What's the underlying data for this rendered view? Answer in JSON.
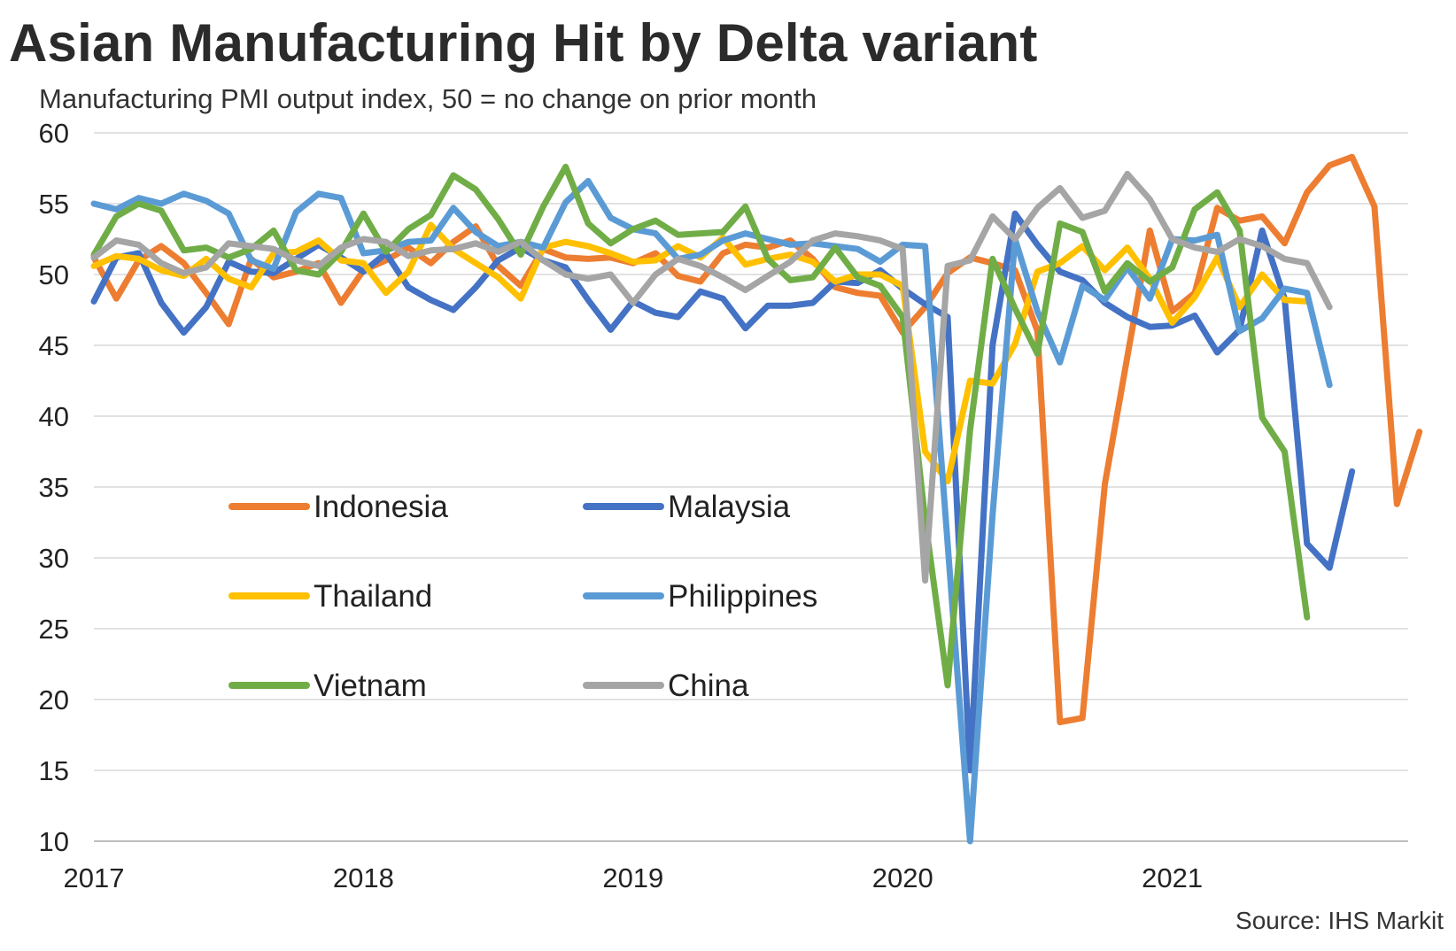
{
  "title": "Asian Manufacturing Hit by Delta variant",
  "subtitle": "Manufacturing PMI output index, 50 = no change on prior month",
  "source": "Source: IHS Markit",
  "chart_data": {
    "type": "line",
    "ylim": [
      10,
      60
    ],
    "yticks": [
      10,
      15,
      20,
      25,
      30,
      35,
      40,
      45,
      50,
      55,
      60
    ],
    "xticks": [
      "2017",
      "2018",
      "2019",
      "2020",
      "2021"
    ],
    "x_start": "2017-01",
    "grid": true,
    "legend_position": "lower-left inside plot",
    "series": [
      {
        "name": "Indonesia",
        "color": "#ED7D31",
        "values": [
          51.2,
          48.3,
          51.0,
          52.0,
          50.8,
          48.7,
          46.5,
          51.1,
          49.8,
          50.2,
          50.8,
          48.0,
          50.3,
          51.0,
          51.9,
          50.8,
          52.3,
          53.4,
          50.6,
          49.2,
          51.8,
          51.2,
          51.1,
          51.2,
          50.8,
          51.5,
          49.9,
          49.5,
          51.5,
          52.1,
          51.9,
          52.4,
          51.1,
          49.1,
          48.7,
          48.5,
          45.9,
          47.7,
          50.1,
          51.2,
          50.8,
          50.3,
          46.0,
          18.4,
          18.7,
          35.2,
          44.2,
          53.1,
          47.4,
          48.7,
          54.7,
          53.8,
          54.1,
          52.2,
          55.8,
          57.7,
          58.3,
          54.8,
          33.8,
          38.9
        ]
      },
      {
        "name": "Malaysia",
        "color": "#4472C4",
        "values": [
          48.1,
          51.2,
          51.5,
          48.0,
          45.9,
          47.7,
          50.9,
          50.2,
          50.1,
          51.1,
          52.1,
          51.2,
          50.2,
          51.5,
          49.1,
          48.2,
          47.5,
          49.1,
          51.0,
          51.9,
          51.0,
          50.5,
          48.2,
          46.1,
          48.1,
          47.3,
          47.0,
          48.8,
          48.3,
          46.2,
          47.8,
          47.8,
          48.0,
          49.5,
          49.4,
          50.3,
          49.0,
          47.9,
          47.0,
          15.0,
          45.0,
          54.3,
          52.1,
          50.2,
          49.6,
          48.0,
          47.0,
          46.3,
          46.4,
          47.1,
          44.5,
          46.1,
          53.1,
          48.3,
          31.0,
          29.3,
          36.1
        ]
      },
      {
        "name": "Thailand",
        "color": "#FFC000",
        "values": [
          50.6,
          51.3,
          51.1,
          50.3,
          49.9,
          51.1,
          49.7,
          49.1,
          51.5,
          51.6,
          52.4,
          51.0,
          50.8,
          48.7,
          50.2,
          53.5,
          51.8,
          50.8,
          49.8,
          48.3,
          51.9,
          52.3,
          52.0,
          51.5,
          50.9,
          51.0,
          52.0,
          51.2,
          52.6,
          50.7,
          51.1,
          51.4,
          50.9,
          49.5,
          50.0,
          50.0,
          49.2,
          37.5,
          35.4,
          42.5,
          42.3,
          45.1,
          50.2,
          50.8,
          52.0,
          50.3,
          51.9,
          49.7,
          46.6,
          48.4,
          51.2,
          47.7,
          50.0,
          48.2,
          48.1
        ]
      },
      {
        "name": "Philippines",
        "color": "#5B9BD5",
        "values": [
          55.0,
          54.6,
          55.4,
          55.0,
          55.7,
          55.2,
          54.3,
          51.0,
          50.4,
          54.4,
          55.7,
          55.4,
          51.5,
          51.7,
          52.3,
          52.4,
          54.7,
          53.0,
          52.0,
          52.3,
          51.9,
          55.1,
          56.6,
          54.0,
          53.2,
          52.9,
          51.1,
          51.4,
          52.4,
          52.9,
          52.5,
          52.1,
          52.2,
          52.0,
          51.8,
          50.9,
          52.1,
          52.0,
          31.0,
          10.0,
          33.0,
          52.5,
          47.4,
          43.8,
          49.2,
          48.2,
          50.5,
          48.3,
          52.5,
          52.4,
          52.8,
          46.0,
          46.9,
          49.0,
          48.7,
          42.2
        ]
      },
      {
        "name": "Vietnam",
        "color": "#70AD47",
        "values": [
          51.4,
          54.1,
          55.0,
          54.5,
          51.7,
          51.9,
          51.2,
          51.8,
          53.1,
          50.3,
          50.0,
          51.6,
          54.3,
          51.6,
          53.2,
          54.2,
          57.0,
          56.0,
          53.9,
          51.4,
          54.8,
          57.6,
          53.6,
          52.2,
          53.2,
          53.8,
          52.8,
          52.9,
          53.0,
          54.8,
          51.1,
          49.6,
          49.8,
          51.9,
          49.8,
          49.2,
          47.0,
          32.7,
          21.0,
          39.0,
          51.1,
          47.6,
          44.4,
          53.6,
          53.0,
          48.8,
          50.8,
          49.5,
          50.5,
          54.6,
          55.8,
          53.1,
          39.9,
          37.5,
          25.8
        ]
      },
      {
        "name": "China",
        "color": "#A5A5A5",
        "values": [
          51.2,
          52.4,
          52.1,
          50.8,
          50.1,
          50.5,
          52.2,
          52.0,
          51.8,
          51.0,
          50.6,
          51.9,
          52.5,
          52.3,
          51.3,
          51.7,
          51.8,
          52.2,
          51.6,
          52.3,
          51.0,
          50.0,
          49.7,
          50.0,
          48.0,
          50.0,
          51.1,
          50.6,
          49.8,
          48.9,
          49.9,
          50.9,
          52.4,
          52.9,
          52.7,
          52.4,
          51.8,
          28.4,
          50.6,
          51.0,
          54.1,
          52.5,
          54.7,
          56.1,
          54.0,
          54.5,
          57.1,
          55.3,
          52.5,
          51.9,
          51.6,
          52.5,
          52.0,
          51.1,
          50.8,
          47.7
        ]
      }
    ],
    "legend": [
      "Indonesia",
      "Malaysia",
      "Thailand",
      "Philippines",
      "Vietnam",
      "China"
    ]
  }
}
